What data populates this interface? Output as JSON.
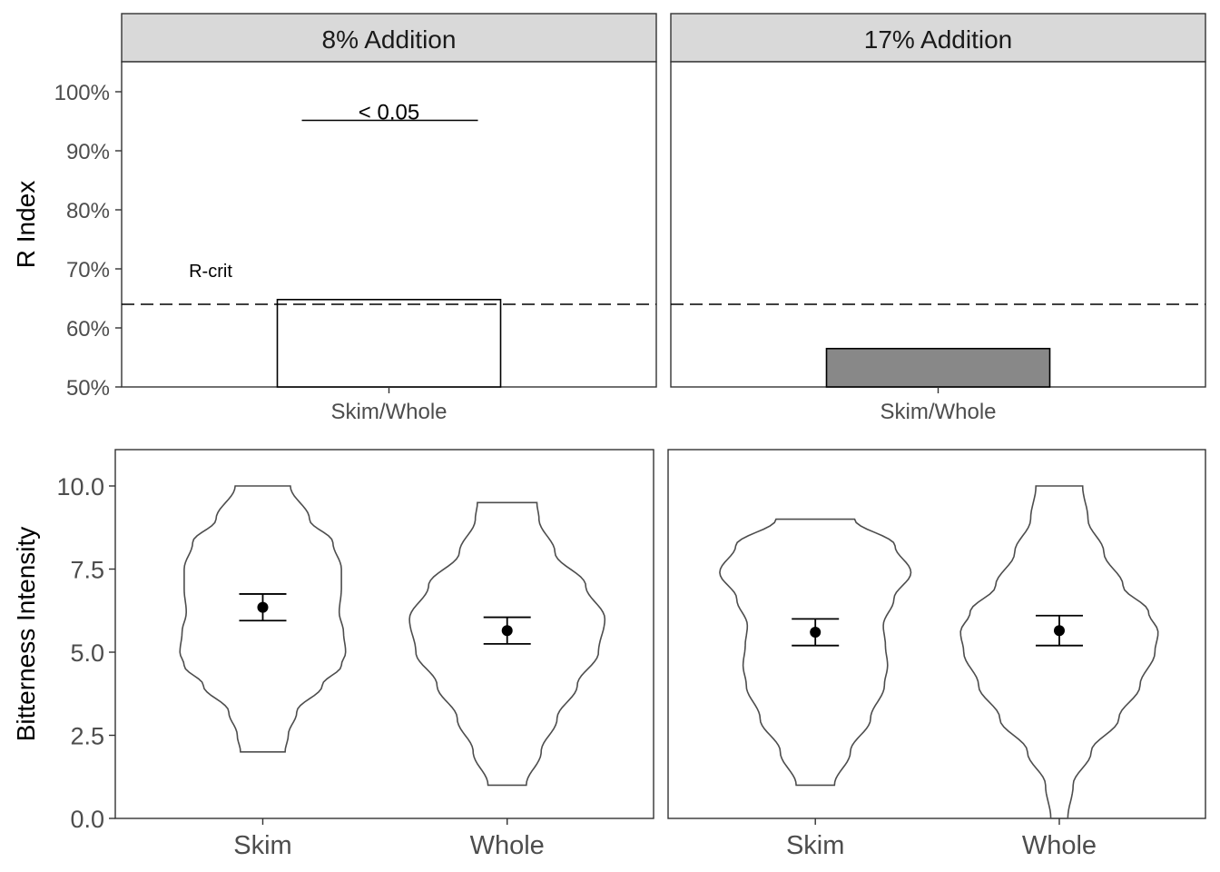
{
  "chart_data": [
    {
      "type": "bar",
      "panel": "top",
      "ylabel": "R Index",
      "ylim": [
        50,
        100
      ],
      "yticks": [
        "50%",
        "60%",
        "70%",
        "80%",
        "90%",
        "100%"
      ],
      "ytick_values": [
        50,
        60,
        70,
        80,
        90,
        100
      ],
      "categories": [
        "Skim/Whole"
      ],
      "rcrit_value": 64,
      "rcrit_label": "R-crit",
      "facets": [
        {
          "strip": "8% Addition",
          "value": 64.8,
          "fill": "#ffffff",
          "significance": "< 0.05",
          "sig_y": 95
        },
        {
          "strip": "17% Addition",
          "value": 56.5,
          "fill": "#888888",
          "significance": "",
          "sig_y": null
        }
      ]
    },
    {
      "type": "violin",
      "panel": "bottom",
      "ylabel": "Bitterness Intensity",
      "ylim": [
        0,
        10
      ],
      "yticks": [
        "0.0",
        "2.5",
        "5.0",
        "7.5",
        "10.0"
      ],
      "ytick_values": [
        0,
        2.5,
        5,
        7.5,
        10
      ],
      "categories": [
        "Skim",
        "Whole"
      ],
      "facets": [
        {
          "strip": "8% Addition",
          "groups": [
            {
              "name": "Skim",
              "mean": 6.35,
              "lower": 5.95,
              "upper": 6.75,
              "min": 2,
              "max": 10,
              "profile": [
                [
                  2,
                  0.21
                ],
                [
                  2.5,
                  0.24
                ],
                [
                  3.2,
                  0.32
                ],
                [
                  4,
                  0.56
                ],
                [
                  4.6,
                  0.74
                ],
                [
                  5,
                  0.78
                ],
                [
                  5.6,
                  0.76
                ],
                [
                  6.2,
                  0.72
                ],
                [
                  6.9,
                  0.74
                ],
                [
                  7.5,
                  0.74
                ],
                [
                  8.3,
                  0.66
                ],
                [
                  9,
                  0.44
                ],
                [
                  10,
                  0.26
                ]
              ]
            },
            {
              "name": "Whole",
              "mean": 5.65,
              "lower": 5.25,
              "upper": 6.05,
              "min": 1,
              "max": 9.5,
              "profile": [
                [
                  1,
                  0.18
                ],
                [
                  2,
                  0.32
                ],
                [
                  3,
                  0.47
                ],
                [
                  4,
                  0.66
                ],
                [
                  5,
                  0.86
                ],
                [
                  6,
                  0.92
                ],
                [
                  7,
                  0.74
                ],
                [
                  8,
                  0.45
                ],
                [
                  9,
                  0.3
                ],
                [
                  9.5,
                  0.28
                ]
              ]
            }
          ]
        },
        {
          "strip": "17% Addition",
          "groups": [
            {
              "name": "Skim",
              "mean": 5.6,
              "lower": 5.2,
              "upper": 6.0,
              "min": 1,
              "max": 9,
              "profile": [
                [
                  1,
                  0.18
                ],
                [
                  2,
                  0.33
                ],
                [
                  3,
                  0.52
                ],
                [
                  4,
                  0.65
                ],
                [
                  4.6,
                  0.68
                ],
                [
                  5.2,
                  0.66
                ],
                [
                  5.8,
                  0.64
                ],
                [
                  6.6,
                  0.74
                ],
                [
                  7.4,
                  0.9
                ],
                [
                  8.2,
                  0.75
                ],
                [
                  9,
                  0.37
                ]
              ]
            },
            {
              "name": "Whole",
              "mean": 5.65,
              "lower": 5.2,
              "upper": 6.1,
              "min": 0,
              "max": 10,
              "profile": [
                [
                  0,
                  0.08
                ],
                [
                  1,
                  0.13
                ],
                [
                  2,
                  0.3
                ],
                [
                  3,
                  0.56
                ],
                [
                  4,
                  0.76
                ],
                [
                  5,
                  0.9
                ],
                [
                  5.6,
                  0.93
                ],
                [
                  6.2,
                  0.84
                ],
                [
                  7,
                  0.6
                ],
                [
                  8,
                  0.42
                ],
                [
                  9,
                  0.27
                ],
                [
                  10,
                  0.22
                ]
              ]
            }
          ]
        }
      ]
    }
  ]
}
